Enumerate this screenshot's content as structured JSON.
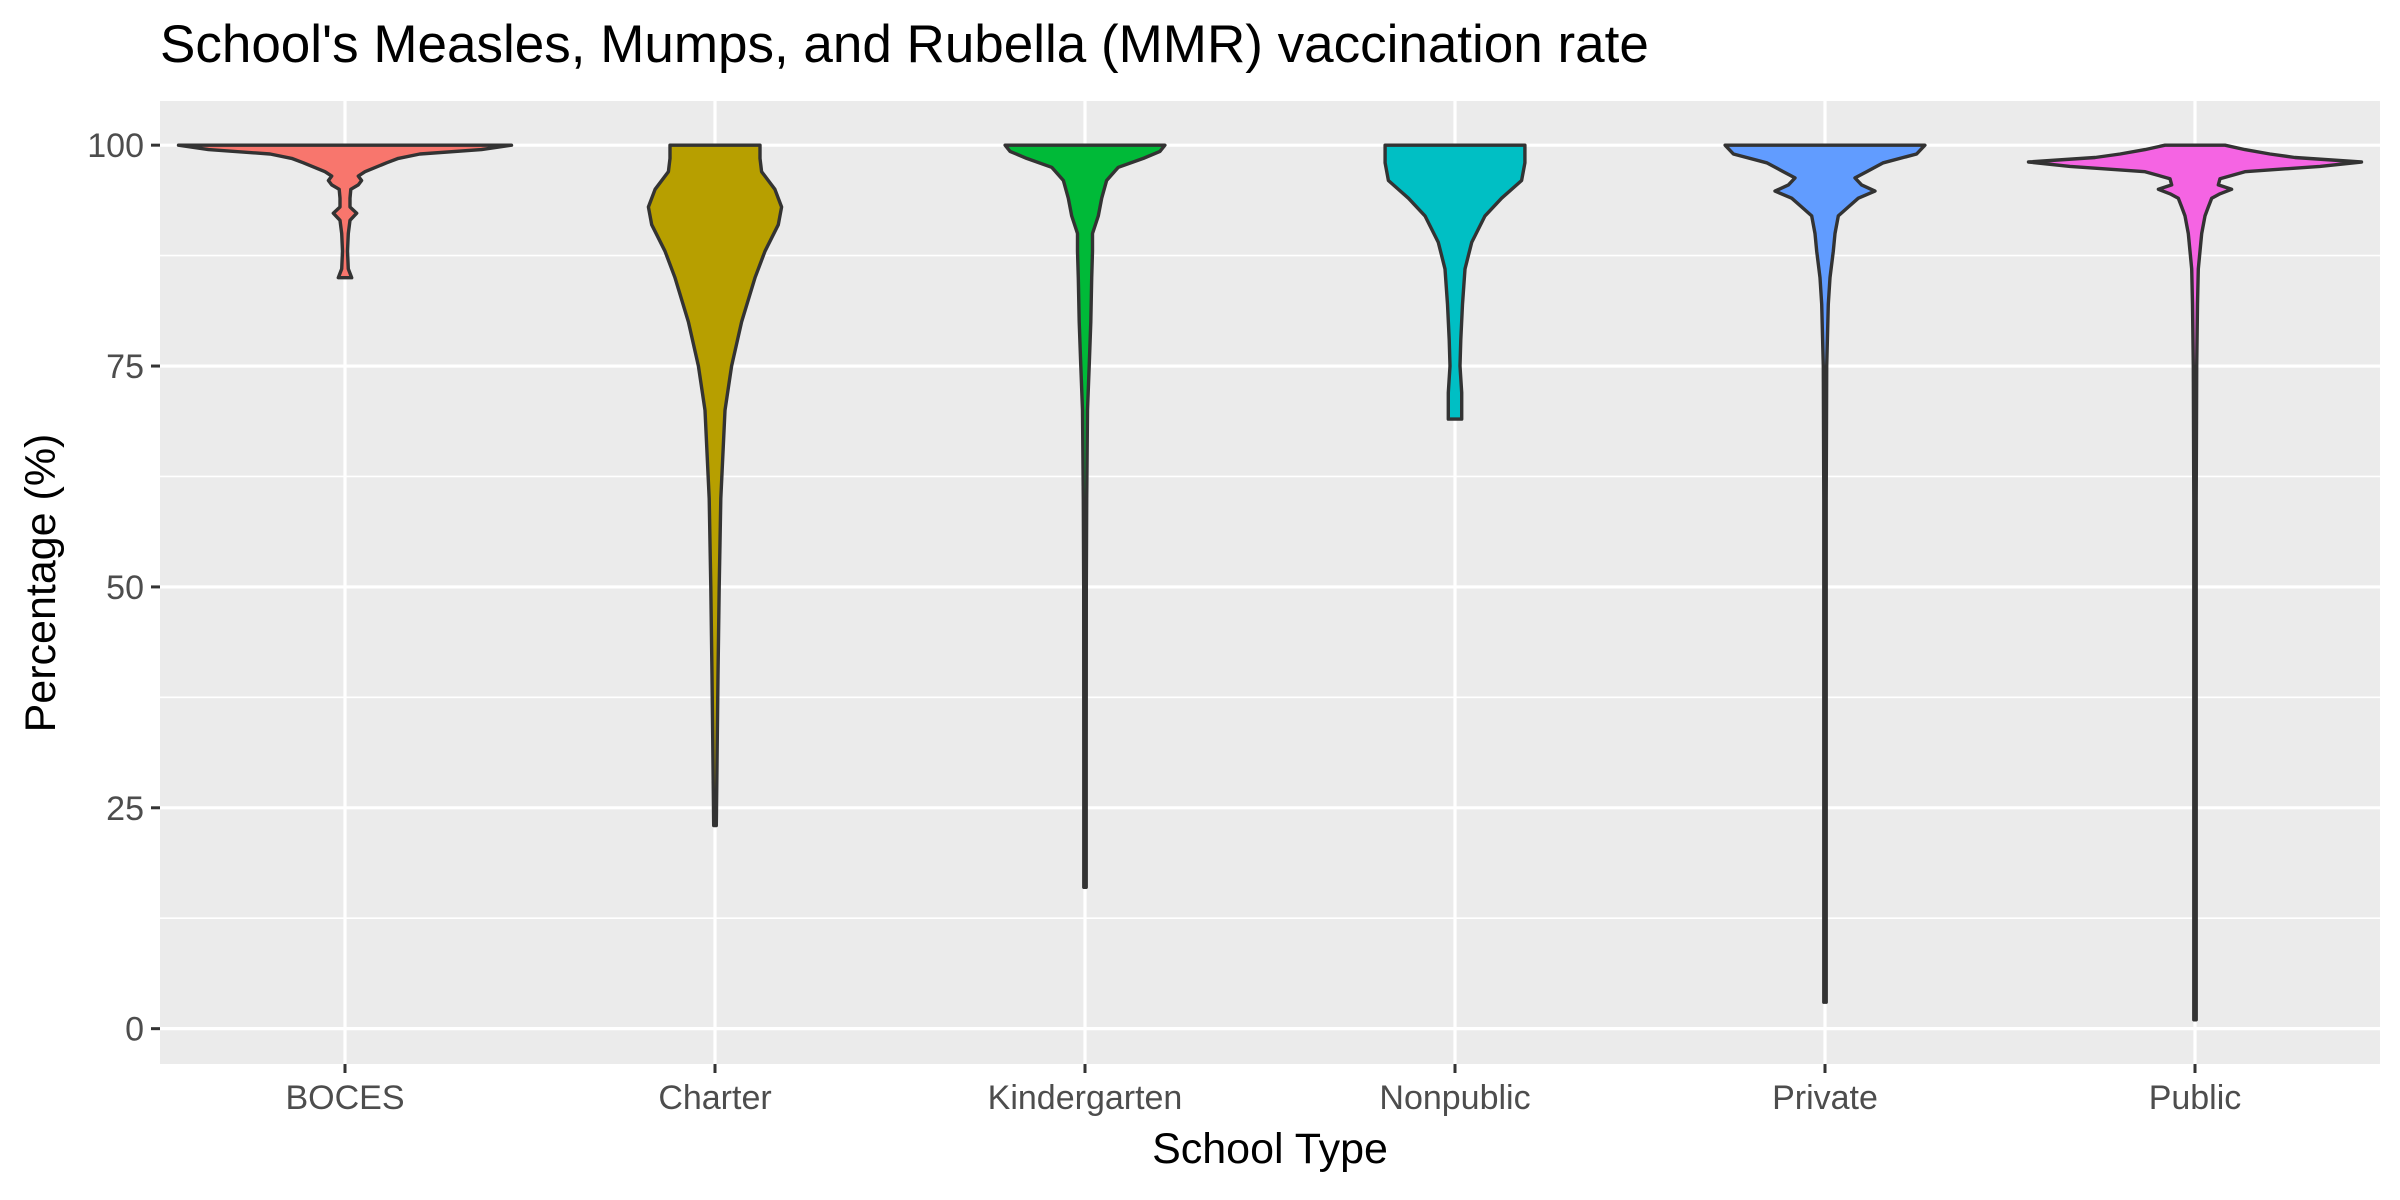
{
  "chart_data": {
    "type": "violin",
    "title": "School's Measles, Mumps, and Rubella (MMR) vaccination rate",
    "xlabel": "School Type",
    "ylabel": "Percentage (%)",
    "ylim": [
      -4,
      105
    ],
    "y_ticks": [
      0,
      25,
      50,
      75,
      100
    ],
    "grid": true,
    "legend": "none",
    "categories": [
      "BOCES",
      "Charter",
      "Kindergarten",
      "Nonpublic",
      "Private",
      "Public"
    ],
    "colors": [
      "#F8766D",
      "#B79F00",
      "#00BA38",
      "#00BFC4",
      "#619CFF",
      "#F564E3"
    ],
    "series": [
      {
        "category": "BOCES",
        "min": 85,
        "max": 100,
        "density": [
          [
            85,
            0.04
          ],
          [
            86,
            0.02
          ],
          [
            88,
            0.015
          ],
          [
            90,
            0.02
          ],
          [
            91.5,
            0.03
          ],
          [
            92.3,
            0.07
          ],
          [
            93,
            0.03
          ],
          [
            94,
            0.03
          ],
          [
            95,
            0.035
          ],
          [
            95.5,
            0.08
          ],
          [
            96,
            0.1
          ],
          [
            96.5,
            0.08
          ],
          [
            97,
            0.12
          ],
          [
            98,
            0.25
          ],
          [
            98.5,
            0.32
          ],
          [
            99,
            0.45
          ],
          [
            99.5,
            0.82
          ],
          [
            100,
            1.0
          ]
        ]
      },
      {
        "category": "Charter",
        "min": 23,
        "max": 100,
        "density": [
          [
            23,
            0.008
          ],
          [
            30,
            0.012
          ],
          [
            40,
            0.018
          ],
          [
            50,
            0.025
          ],
          [
            60,
            0.035
          ],
          [
            70,
            0.06
          ],
          [
            75,
            0.1
          ],
          [
            80,
            0.16
          ],
          [
            85,
            0.24
          ],
          [
            88,
            0.3
          ],
          [
            91,
            0.38
          ],
          [
            93,
            0.4
          ],
          [
            95,
            0.36
          ],
          [
            97,
            0.28
          ],
          [
            98.5,
            0.27
          ],
          [
            100,
            0.27
          ]
        ]
      },
      {
        "category": "Kindergarten",
        "min": 16,
        "max": 100,
        "density": [
          [
            16,
            0.006
          ],
          [
            30,
            0.006
          ],
          [
            50,
            0.008
          ],
          [
            60,
            0.01
          ],
          [
            70,
            0.015
          ],
          [
            75,
            0.025
          ],
          [
            80,
            0.035
          ],
          [
            85,
            0.04
          ],
          [
            88,
            0.045
          ],
          [
            90,
            0.045
          ],
          [
            92,
            0.08
          ],
          [
            94,
            0.1
          ],
          [
            96,
            0.13
          ],
          [
            97.5,
            0.2
          ],
          [
            98.5,
            0.35
          ],
          [
            99.3,
            0.45
          ],
          [
            100,
            0.48
          ]
        ]
      },
      {
        "category": "Nonpublic",
        "min": 69,
        "max": 100,
        "density": [
          [
            69,
            0.04
          ],
          [
            72,
            0.04
          ],
          [
            75,
            0.03
          ],
          [
            78,
            0.035
          ],
          [
            82,
            0.045
          ],
          [
            86,
            0.06
          ],
          [
            89,
            0.1
          ],
          [
            92,
            0.18
          ],
          [
            94,
            0.28
          ],
          [
            96,
            0.4
          ],
          [
            98,
            0.42
          ],
          [
            100,
            0.42
          ]
        ]
      },
      {
        "category": "Private",
        "min": 3,
        "max": 100,
        "density": [
          [
            3,
            0.004
          ],
          [
            20,
            0.004
          ],
          [
            40,
            0.005
          ],
          [
            60,
            0.006
          ],
          [
            75,
            0.01
          ],
          [
            82,
            0.02
          ],
          [
            85,
            0.03
          ],
          [
            88,
            0.05
          ],
          [
            90,
            0.06
          ],
          [
            92,
            0.08
          ],
          [
            93,
            0.14
          ],
          [
            94,
            0.2
          ],
          [
            94.8,
            0.3
          ],
          [
            95.5,
            0.22
          ],
          [
            96.3,
            0.18
          ],
          [
            97,
            0.25
          ],
          [
            98,
            0.35
          ],
          [
            99,
            0.55
          ],
          [
            100,
            0.6
          ]
        ]
      },
      {
        "category": "Public",
        "min": 1,
        "max": 100,
        "density": [
          [
            1,
            0.002
          ],
          [
            20,
            0.003
          ],
          [
            40,
            0.004
          ],
          [
            60,
            0.006
          ],
          [
            75,
            0.01
          ],
          [
            82,
            0.015
          ],
          [
            86,
            0.02
          ],
          [
            88,
            0.03
          ],
          [
            90,
            0.04
          ],
          [
            92,
            0.06
          ],
          [
            93,
            0.08
          ],
          [
            94,
            0.1
          ],
          [
            94.5,
            0.15
          ],
          [
            95,
            0.22
          ],
          [
            95.5,
            0.14
          ],
          [
            96.2,
            0.15
          ],
          [
            97,
            0.3
          ],
          [
            97.6,
            0.75
          ],
          [
            98.1,
            1.0
          ],
          [
            98.6,
            0.6
          ],
          [
            99,
            0.45
          ],
          [
            99.5,
            0.3
          ],
          [
            100,
            0.18
          ]
        ]
      }
    ]
  }
}
